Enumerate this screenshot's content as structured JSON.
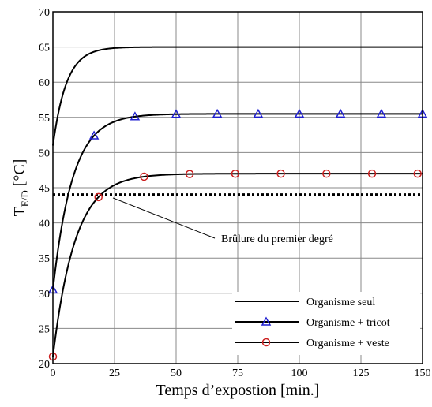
{
  "chart_data": {
    "type": "line",
    "title": "",
    "xlabel": "Temps d’expostion  [min.]",
    "ylabel_main": "T",
    "ylabel_sub": "E/D",
    "ylabel_unit": " [°C]",
    "xlim": [
      0,
      150
    ],
    "ylim": [
      20,
      70
    ],
    "xticks": [
      0,
      25,
      50,
      75,
      100,
      125,
      150
    ],
    "yticks": [
      20,
      25,
      30,
      35,
      40,
      45,
      50,
      55,
      60,
      65,
      70
    ],
    "grid": true,
    "legend_position": "bottom-right",
    "series": [
      {
        "name": "Organisme seul",
        "color": "#000000",
        "marker": "none",
        "model": {
          "start": 51,
          "plateau": 65,
          "tau_min": 5.5
        },
        "markers_x": []
      },
      {
        "name": "Organisme + tricot",
        "color": "#1f1fd0",
        "marker": "triangle",
        "model": {
          "start": 30.5,
          "plateau": 55.5,
          "tau_min": 8
        },
        "markers_x": [
          0,
          16.7,
          33.3,
          50,
          66.7,
          83.3,
          100,
          116.7,
          133.3,
          150
        ]
      },
      {
        "name": "Organisme + veste",
        "color": "#cc1f1f",
        "marker": "circle",
        "model": {
          "start": 21,
          "plateau": 47,
          "tau_min": 9
        },
        "markers_x": [
          0,
          18.5,
          37,
          55.5,
          74,
          92.5,
          111,
          129.5,
          148
        ]
      }
    ],
    "threshold": {
      "y": 44,
      "style": "dotted"
    },
    "annotations": [
      {
        "text": "Brûlure du premier degré",
        "point_x": 25,
        "point_y": 44
      }
    ]
  }
}
